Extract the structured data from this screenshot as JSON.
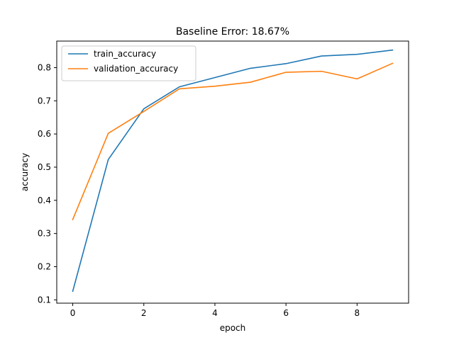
{
  "chart_data": {
    "type": "line",
    "title": "Baseline Error: 18.67%",
    "xlabel": "epoch",
    "ylabel": "accuracy",
    "x": [
      0,
      1,
      2,
      3,
      4,
      5,
      6,
      7,
      8,
      9
    ],
    "xlim": [
      -0.45,
      9.45
    ],
    "ylim": [
      0.09,
      0.88
    ],
    "xticks": [
      0,
      2,
      4,
      6,
      8
    ],
    "yticks": [
      0.1,
      0.2,
      0.3,
      0.4,
      0.5,
      0.6,
      0.7,
      0.8
    ],
    "grid": false,
    "legend_position": "upper left",
    "series": [
      {
        "name": "train_accuracy",
        "color": "#1f77b4",
        "values": [
          0.126,
          0.523,
          0.676,
          0.742,
          0.77,
          0.798,
          0.812,
          0.835,
          0.84,
          0.853
        ]
      },
      {
        "name": "validation_accuracy",
        "color": "#ff7f0e",
        "values": [
          0.342,
          0.602,
          0.668,
          0.736,
          0.744,
          0.756,
          0.786,
          0.789,
          0.766,
          0.813
        ]
      }
    ]
  }
}
